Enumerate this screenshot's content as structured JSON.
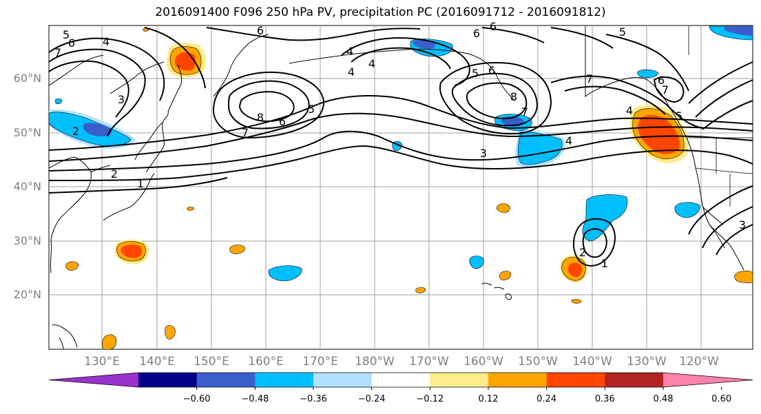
{
  "title": "2016091400 F096 250 hPa PV, precipitation PC (2016091712 - 2016091812)",
  "lat_labels": [
    "60°N",
    "50°N",
    "40°N",
    "30°N",
    "20°N"
  ],
  "lon_labels": [
    "130°E",
    "140°E",
    "150°E",
    "160°E",
    "170°E",
    "180°W",
    "170°W",
    "160°W",
    "150°W",
    "140°W",
    "130°W",
    "120°W"
  ],
  "contour_labels": [
    "5",
    "6",
    "7",
    "4",
    "6",
    "6",
    "4",
    "5",
    "3",
    "2",
    "2",
    "1",
    "7",
    "8",
    "6",
    "5",
    "4",
    "5",
    "6",
    "7",
    "8",
    "3",
    "4",
    "7",
    "6",
    "5",
    "4",
    "7",
    "6",
    "4",
    "3",
    "2",
    "1",
    "3"
  ],
  "colorbar": {
    "colors": [
      "#9932cc",
      "#00008b",
      "#3a5fcd",
      "#00bfff",
      "#b0e2ff",
      "#ffffff",
      "#ffec8b",
      "#ffa500",
      "#ff4500",
      "#b22222",
      "#ff82ab"
    ],
    "tick_labels": [
      "−0.60",
      "−0.48",
      "−0.36",
      "−0.24",
      "−0.12",
      "0.12",
      "0.24",
      "0.36",
      "0.48",
      "0.60"
    ],
    "levels": [
      -0.6,
      -0.48,
      -0.36,
      -0.24,
      -0.12,
      0.12,
      0.24,
      0.36,
      0.48,
      0.6
    ],
    "extend": "both"
  }
}
